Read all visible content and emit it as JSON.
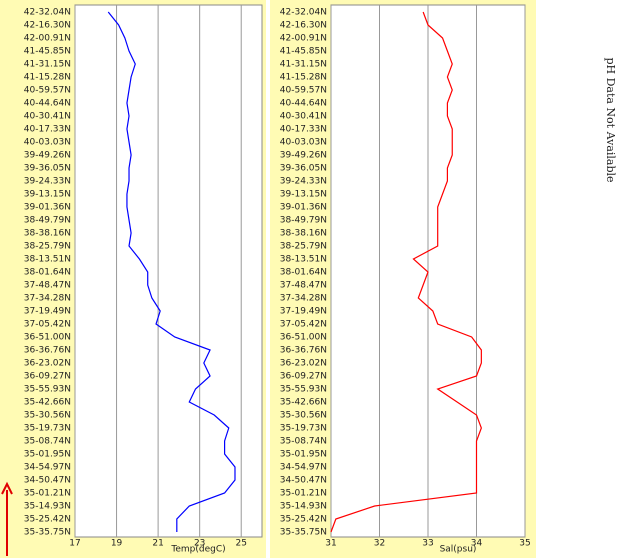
{
  "chart_data": [
    {
      "type": "line",
      "orientation": "vertical-category",
      "categories": [
        "42-32.04N",
        "42-16.30N",
        "42-00.91N",
        "41-45.85N",
        "41-31.15N",
        "41-15.28N",
        "40-59.57N",
        "40-44.64N",
        "40-30.41N",
        "40-17.33N",
        "40-03.03N",
        "39-49.26N",
        "39-36.05N",
        "39-24.33N",
        "39-13.15N",
        "39-01.36N",
        "38-49.79N",
        "38-38.16N",
        "38-25.79N",
        "38-13.51N",
        "38-01.64N",
        "37-48.47N",
        "37-34.28N",
        "37-19.49N",
        "37-05.42N",
        "36-51.00N",
        "36-36.76N",
        "36-23.02N",
        "36-09.27N",
        "35-55.93N",
        "35-42.66N",
        "35-30.56N",
        "35-19.73N",
        "35-08.74N",
        "35-01.95N",
        "34-54.97N",
        "34-50.47N",
        "35-01.21N",
        "35-14.93N",
        "35-25.42N",
        "35-35.75N"
      ],
      "series": [
        {
          "color": "#0000ff",
          "values": [
            18.6,
            19.1,
            19.4,
            19.6,
            19.9,
            19.7,
            19.6,
            19.5,
            19.6,
            19.5,
            19.6,
            19.7,
            19.6,
            19.6,
            19.5,
            19.5,
            19.6,
            19.7,
            19.6,
            20.1,
            20.5,
            20.5,
            20.7,
            21.1,
            20.9,
            21.8,
            23.5,
            23.2,
            23.5,
            22.8,
            22.5,
            23.7,
            24.4,
            24.2,
            24.2,
            24.7,
            24.7,
            24.2,
            22.5,
            21.9,
            21.9
          ]
        }
      ],
      "xlim": [
        17,
        26
      ],
      "xticks": [
        17,
        19,
        21,
        23,
        25
      ],
      "xlabel": "Temp(degC)",
      "grid": true
    },
    {
      "type": "line",
      "orientation": "vertical-category",
      "categories": [
        "42-32.04N",
        "42-16.30N",
        "42-00.91N",
        "41-45.85N",
        "41-31.15N",
        "41-15.28N",
        "40-59.57N",
        "40-44.64N",
        "40-30.41N",
        "40-17.33N",
        "40-03.03N",
        "39-49.26N",
        "39-36.05N",
        "39-24.33N",
        "39-13.15N",
        "39-01.36N",
        "38-49.79N",
        "38-38.16N",
        "38-25.79N",
        "38-13.51N",
        "38-01.64N",
        "37-48.47N",
        "37-34.28N",
        "37-19.49N",
        "37-05.42N",
        "36-51.00N",
        "36-36.76N",
        "36-23.02N",
        "36-09.27N",
        "35-55.93N",
        "35-42.66N",
        "35-30.56N",
        "35-19.73N",
        "35-08.74N",
        "35-01.95N",
        "34-54.97N",
        "34-50.47N",
        "35-01.21N",
        "35-14.93N",
        "35-25.42N",
        "35-35.75N"
      ],
      "series": [
        {
          "color": "#ff0000",
          "values": [
            32.9,
            33.0,
            33.3,
            33.4,
            33.5,
            33.4,
            33.5,
            33.4,
            33.4,
            33.5,
            33.5,
            33.5,
            33.4,
            33.4,
            33.3,
            33.2,
            33.2,
            33.2,
            33.2,
            32.7,
            33.0,
            32.9,
            32.8,
            33.1,
            33.2,
            33.9,
            34.1,
            34.1,
            34.0,
            33.2,
            33.6,
            34.0,
            34.1,
            34.0,
            34.0,
            34.0,
            34.0,
            34.0,
            31.9,
            31.1,
            31.0
          ]
        }
      ],
      "xlim": [
        31,
        35
      ],
      "xticks": [
        31,
        32,
        33,
        34,
        35
      ],
      "xlabel": "Sal(psu)",
      "grid": true
    }
  ],
  "annotation": "pH Data Not Available"
}
